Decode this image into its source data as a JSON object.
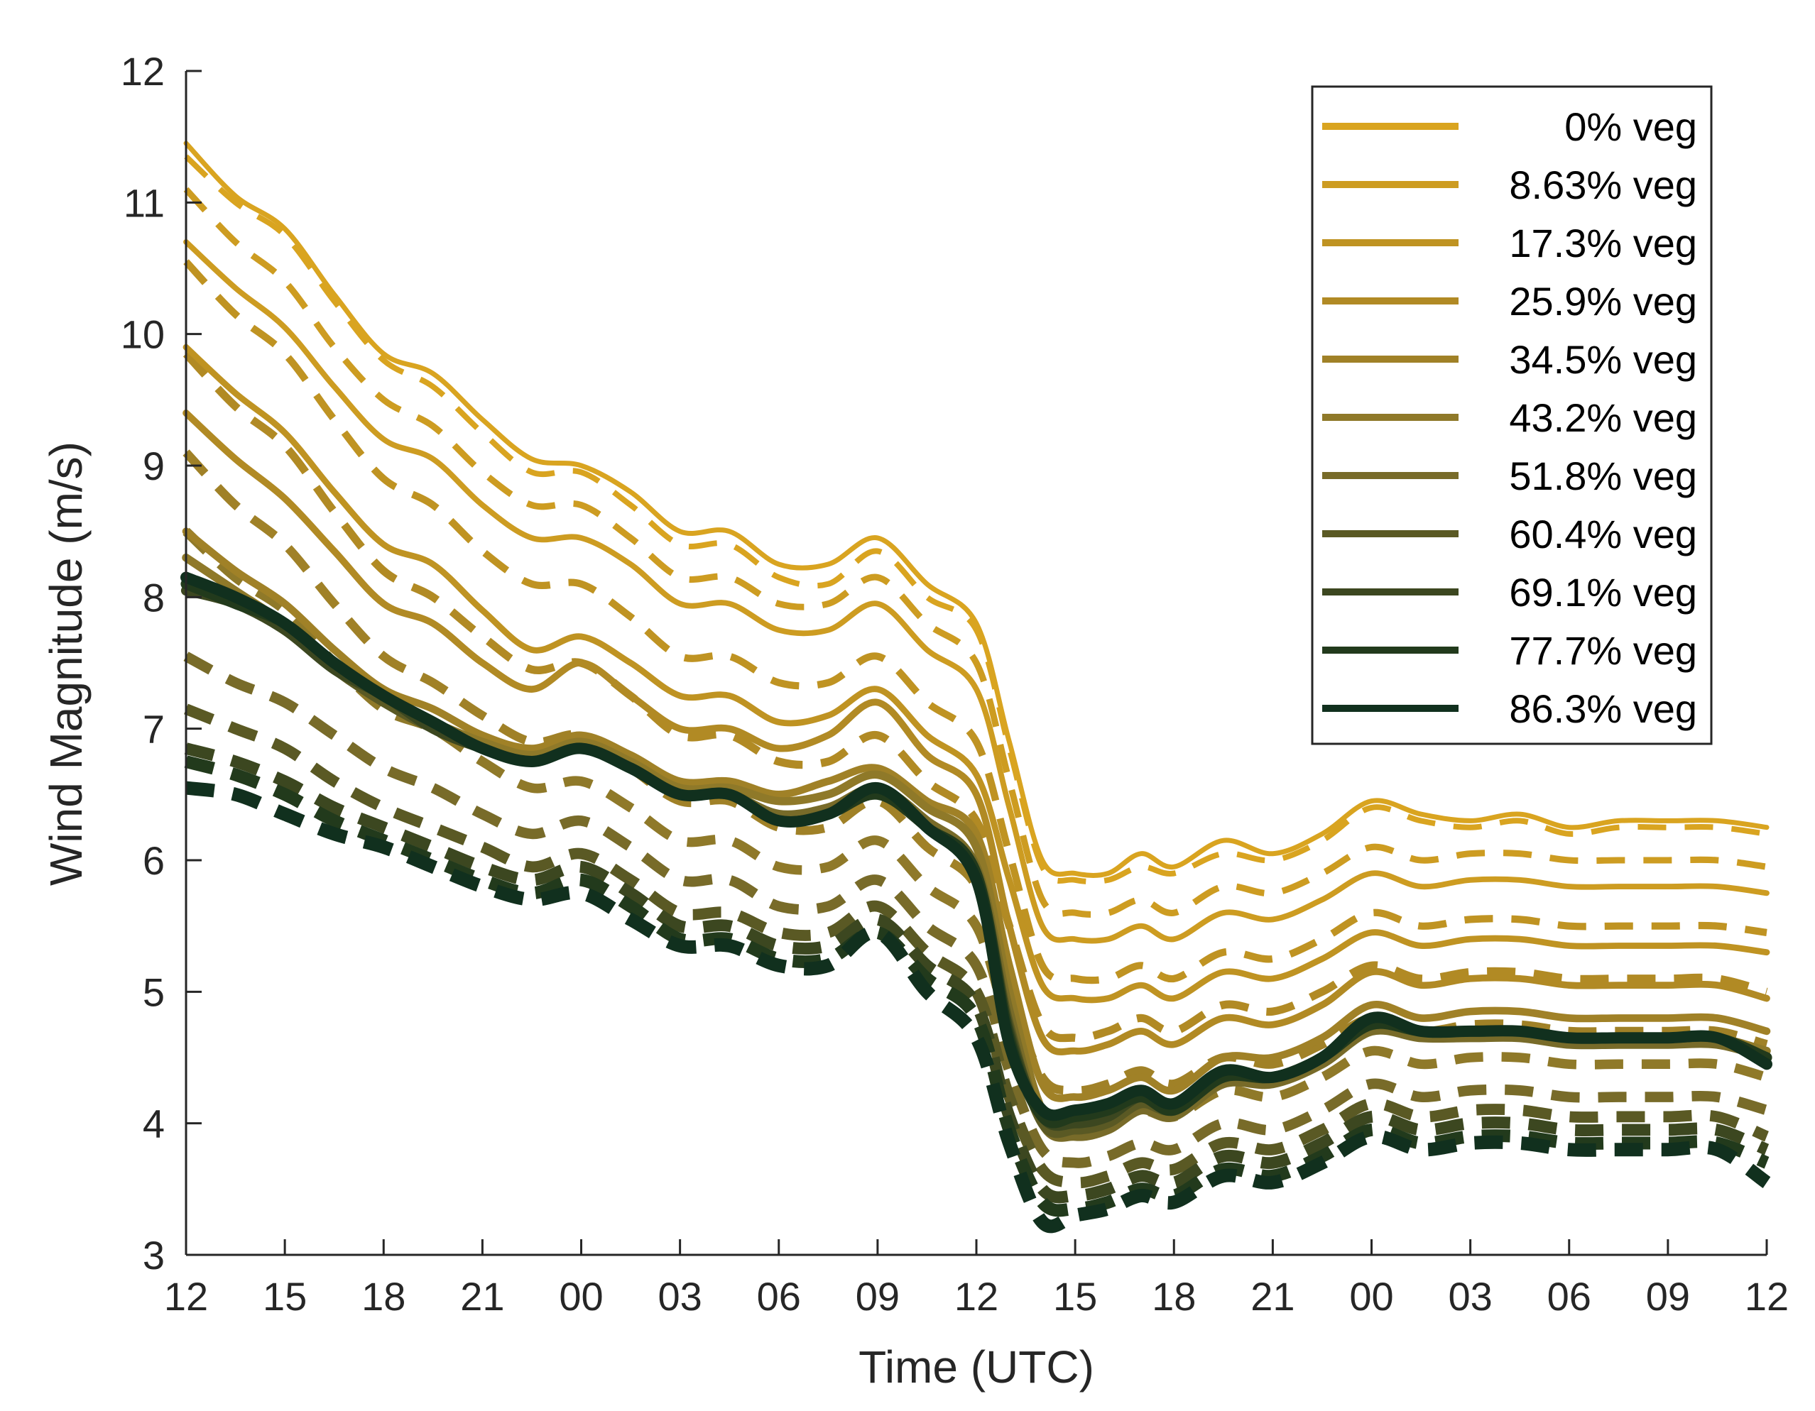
{
  "chart_data": {
    "type": "line",
    "title": "",
    "xlabel": "Time (UTC)",
    "ylabel": "Wind Magnitude (m/s)",
    "xlim": [
      0,
      48
    ],
    "ylim": [
      3,
      12
    ],
    "x_tick_values": [
      0,
      3,
      6,
      9,
      12,
      15,
      18,
      21,
      24,
      27,
      30,
      33,
      36,
      39,
      42,
      45,
      48
    ],
    "x_tick_labels": [
      "12",
      "15",
      "18",
      "21",
      "00",
      "03",
      "06",
      "09",
      "12",
      "15",
      "18",
      "21",
      "00",
      "03",
      "06",
      "09",
      "12"
    ],
    "y_ticks": [
      3,
      4,
      5,
      6,
      7,
      8,
      9,
      10,
      11,
      12
    ],
    "grid": false,
    "legend_position": "top-right",
    "line_style_note": "solid = one model set, dashed = paired set; both use the series colour",
    "x": [
      0,
      1.5,
      3,
      4.5,
      6,
      7.5,
      9,
      10.5,
      12,
      13.5,
      15,
      16.5,
      18,
      19.5,
      21,
      22.5,
      24,
      25,
      26,
      27,
      28,
      29,
      30,
      31.5,
      33,
      34.5,
      36,
      37.5,
      39,
      40.5,
      42,
      43.5,
      45,
      46.5,
      48
    ],
    "series": [
      {
        "name": "0% veg",
        "color": "#d9a420",
        "values": [
          11.45,
          11.05,
          10.8,
          10.3,
          9.85,
          9.7,
          9.35,
          9.05,
          9.0,
          8.8,
          8.5,
          8.5,
          8.25,
          8.25,
          8.45,
          8.1,
          7.8,
          6.9,
          6.0,
          5.9,
          5.9,
          6.05,
          5.95,
          6.15,
          6.05,
          6.2,
          6.45,
          6.35,
          6.3,
          6.35,
          6.25,
          6.3,
          6.3,
          6.3,
          6.25
        ]
      },
      {
        "name": "8.63% veg",
        "color": "#cd9c21",
        "values": [
          10.7,
          10.35,
          10.05,
          9.6,
          9.2,
          9.05,
          8.7,
          8.45,
          8.45,
          8.25,
          7.95,
          7.95,
          7.75,
          7.75,
          7.95,
          7.6,
          7.3,
          6.4,
          5.5,
          5.4,
          5.4,
          5.5,
          5.4,
          5.6,
          5.55,
          5.7,
          5.9,
          5.8,
          5.85,
          5.85,
          5.8,
          5.8,
          5.8,
          5.8,
          5.75
        ]
      },
      {
        "name": "17.3% veg",
        "color": "#bf9322",
        "values": [
          9.9,
          9.55,
          9.25,
          8.8,
          8.4,
          8.25,
          7.9,
          7.6,
          7.7,
          7.5,
          7.25,
          7.25,
          7.05,
          7.1,
          7.3,
          6.95,
          6.65,
          5.85,
          5.05,
          4.95,
          4.95,
          5.05,
          4.95,
          5.15,
          5.1,
          5.25,
          5.45,
          5.35,
          5.4,
          5.4,
          5.35,
          5.35,
          5.35,
          5.35,
          5.3
        ]
      },
      {
        "name": "25.9% veg",
        "color": "#b18a24",
        "values": [
          9.4,
          9.05,
          8.75,
          8.35,
          7.95,
          7.8,
          7.5,
          7.3,
          7.5,
          7.25,
          7.0,
          7.0,
          6.85,
          6.95,
          7.2,
          6.8,
          6.5,
          5.5,
          4.65,
          4.55,
          4.6,
          4.7,
          4.6,
          4.8,
          4.75,
          4.9,
          5.15,
          5.05,
          5.1,
          5.1,
          5.05,
          5.05,
          5.05,
          5.05,
          4.95
        ]
      },
      {
        "name": "34.5% veg",
        "color": "#a08127",
        "values": [
          8.5,
          8.2,
          7.95,
          7.6,
          7.3,
          7.15,
          6.95,
          6.85,
          6.95,
          6.8,
          6.6,
          6.6,
          6.5,
          6.6,
          6.7,
          6.45,
          6.2,
          5.2,
          4.3,
          4.2,
          4.25,
          4.35,
          4.25,
          4.5,
          4.5,
          4.65,
          4.9,
          4.8,
          4.85,
          4.85,
          4.8,
          4.8,
          4.8,
          4.8,
          4.7
        ]
      },
      {
        "name": "43.2% veg",
        "color": "#8f7929",
        "values": [
          8.3,
          8.05,
          7.8,
          7.5,
          7.2,
          7.05,
          6.9,
          6.8,
          6.9,
          6.75,
          6.55,
          6.55,
          6.45,
          6.5,
          6.65,
          6.4,
          6.1,
          5.0,
          4.1,
          4.0,
          4.05,
          4.15,
          4.1,
          4.35,
          4.35,
          4.5,
          4.75,
          4.7,
          4.7,
          4.7,
          4.65,
          4.65,
          4.65,
          4.65,
          4.55
        ]
      },
      {
        "name": "51.8% veg",
        "color": "#786b29",
        "values": [
          8.1,
          7.95,
          7.75,
          7.45,
          7.2,
          7.0,
          6.85,
          6.75,
          6.85,
          6.7,
          6.5,
          6.5,
          6.35,
          6.4,
          6.55,
          6.3,
          5.95,
          4.85,
          4.0,
          3.9,
          3.95,
          4.1,
          4.05,
          4.3,
          4.3,
          4.45,
          4.7,
          4.65,
          4.65,
          4.65,
          4.6,
          4.6,
          4.6,
          4.6,
          4.5
        ]
      },
      {
        "name": "60.4% veg",
        "color": "#5a5924",
        "values": [
          8.05,
          7.95,
          7.75,
          7.45,
          7.2,
          7.0,
          6.85,
          6.75,
          6.85,
          6.7,
          6.5,
          6.5,
          6.3,
          6.35,
          6.5,
          6.25,
          5.9,
          4.75,
          4.0,
          3.95,
          4.0,
          4.15,
          4.1,
          4.35,
          4.35,
          4.5,
          4.75,
          4.7,
          4.7,
          4.7,
          4.65,
          4.65,
          4.65,
          4.65,
          4.5
        ]
      },
      {
        "name": "69.1% veg",
        "color": "#3c4720",
        "values": [
          8.05,
          7.95,
          7.75,
          7.45,
          7.25,
          7.0,
          6.85,
          6.75,
          6.85,
          6.7,
          6.5,
          6.5,
          6.3,
          6.35,
          6.5,
          6.25,
          5.9,
          4.7,
          4.05,
          4.0,
          4.05,
          4.2,
          4.1,
          4.35,
          4.35,
          4.5,
          4.75,
          4.7,
          4.7,
          4.7,
          4.65,
          4.65,
          4.65,
          4.65,
          4.5
        ]
      },
      {
        "name": "77.7% veg",
        "color": "#223a1c",
        "values": [
          8.1,
          7.95,
          7.8,
          7.5,
          7.25,
          7.05,
          6.85,
          6.75,
          6.85,
          6.7,
          6.5,
          6.5,
          6.3,
          6.35,
          6.5,
          6.25,
          5.9,
          4.65,
          4.05,
          4.05,
          4.1,
          4.2,
          4.1,
          4.35,
          4.35,
          4.5,
          4.75,
          4.7,
          4.7,
          4.7,
          4.65,
          4.65,
          4.65,
          4.65,
          4.5
        ]
      },
      {
        "name": "86.3% veg",
        "color": "#11301e",
        "values": [
          8.15,
          8.0,
          7.8,
          7.5,
          7.25,
          7.05,
          6.85,
          6.75,
          6.85,
          6.7,
          6.5,
          6.5,
          6.3,
          6.35,
          6.55,
          6.25,
          5.85,
          4.6,
          4.1,
          4.1,
          4.15,
          4.25,
          4.15,
          4.4,
          4.35,
          4.5,
          4.8,
          4.7,
          4.7,
          4.7,
          4.65,
          4.65,
          4.65,
          4.65,
          4.45
        ]
      }
    ],
    "dashed_series": [
      {
        "name": "0% veg",
        "color": "#d9a420",
        "values": [
          11.35,
          11.0,
          10.75,
          10.25,
          9.8,
          9.6,
          9.25,
          8.95,
          8.95,
          8.7,
          8.4,
          8.4,
          8.15,
          8.1,
          8.35,
          8.0,
          7.75,
          6.85,
          5.95,
          5.85,
          5.85,
          5.95,
          5.9,
          6.05,
          6.0,
          6.15,
          6.4,
          6.3,
          6.25,
          6.3,
          6.2,
          6.25,
          6.25,
          6.25,
          6.2
        ]
      },
      {
        "name": "8.63% veg",
        "color": "#cd9c21",
        "values": [
          11.1,
          10.7,
          10.4,
          9.9,
          9.5,
          9.3,
          8.95,
          8.7,
          8.7,
          8.45,
          8.15,
          8.15,
          7.95,
          7.95,
          8.15,
          7.8,
          7.5,
          6.6,
          5.7,
          5.6,
          5.6,
          5.7,
          5.6,
          5.8,
          5.75,
          5.9,
          6.1,
          6.0,
          6.05,
          6.05,
          6.0,
          6.0,
          6.0,
          6.0,
          5.95
        ]
      },
      {
        "name": "17.3% veg",
        "color": "#bf9322",
        "values": [
          10.55,
          10.15,
          9.85,
          9.35,
          8.9,
          8.7,
          8.35,
          8.1,
          8.1,
          7.85,
          7.55,
          7.55,
          7.35,
          7.35,
          7.55,
          7.2,
          6.9,
          6.05,
          5.2,
          5.1,
          5.1,
          5.2,
          5.1,
          5.3,
          5.25,
          5.4,
          5.6,
          5.5,
          5.55,
          5.55,
          5.5,
          5.5,
          5.5,
          5.5,
          5.45
        ]
      },
      {
        "name": "25.9% veg",
        "color": "#b18a24",
        "values": [
          9.85,
          9.45,
          9.15,
          8.65,
          8.2,
          8.0,
          7.7,
          7.45,
          7.5,
          7.25,
          6.95,
          6.95,
          6.75,
          6.75,
          6.95,
          6.6,
          6.3,
          5.5,
          4.75,
          4.65,
          4.7,
          4.8,
          4.7,
          4.9,
          4.85,
          5.0,
          5.2,
          5.1,
          5.15,
          5.15,
          5.1,
          5.1,
          5.1,
          5.1,
          5.0
        ]
      },
      {
        "name": "34.5% veg",
        "color": "#a08127",
        "values": [
          9.1,
          8.7,
          8.4,
          7.95,
          7.55,
          7.35,
          7.1,
          6.9,
          6.95,
          6.7,
          6.45,
          6.45,
          6.25,
          6.25,
          6.45,
          6.1,
          5.8,
          5.0,
          4.35,
          4.25,
          4.3,
          4.4,
          4.3,
          4.5,
          4.45,
          4.6,
          4.8,
          4.7,
          4.75,
          4.75,
          4.7,
          4.7,
          4.7,
          4.7,
          4.6
        ]
      },
      {
        "name": "43.2% veg",
        "color": "#8f7929",
        "values": [
          8.5,
          8.15,
          7.9,
          7.5,
          7.15,
          7.0,
          6.75,
          6.55,
          6.6,
          6.4,
          6.15,
          6.15,
          5.95,
          5.95,
          6.15,
          5.8,
          5.5,
          4.7,
          4.05,
          3.95,
          4.0,
          4.1,
          4.05,
          4.25,
          4.2,
          4.35,
          4.55,
          4.45,
          4.5,
          4.5,
          4.45,
          4.45,
          4.45,
          4.45,
          4.35
        ]
      },
      {
        "name": "51.8% veg",
        "color": "#786b29",
        "values": [
          7.55,
          7.35,
          7.2,
          6.95,
          6.7,
          6.55,
          6.35,
          6.2,
          6.3,
          6.1,
          5.85,
          5.85,
          5.65,
          5.65,
          5.85,
          5.5,
          5.2,
          4.4,
          3.8,
          3.7,
          3.75,
          3.85,
          3.8,
          4.0,
          3.95,
          4.1,
          4.3,
          4.2,
          4.25,
          4.25,
          4.2,
          4.2,
          4.2,
          4.2,
          4.1
        ]
      },
      {
        "name": "60.4% veg",
        "color": "#5a5924",
        "values": [
          7.15,
          7.0,
          6.85,
          6.6,
          6.4,
          6.25,
          6.1,
          5.95,
          6.05,
          5.85,
          5.6,
          5.6,
          5.45,
          5.45,
          5.65,
          5.3,
          5.0,
          4.2,
          3.65,
          3.55,
          3.6,
          3.7,
          3.65,
          3.85,
          3.8,
          3.95,
          4.15,
          4.05,
          4.1,
          4.1,
          4.05,
          4.05,
          4.05,
          4.05,
          3.9
        ]
      },
      {
        "name": "69.1% veg",
        "color": "#3c4720",
        "values": [
          6.85,
          6.75,
          6.6,
          6.4,
          6.25,
          6.1,
          5.95,
          5.85,
          5.95,
          5.75,
          5.5,
          5.5,
          5.35,
          5.35,
          5.55,
          5.2,
          4.9,
          4.05,
          3.5,
          3.45,
          3.5,
          3.6,
          3.55,
          3.75,
          3.7,
          3.85,
          4.05,
          3.95,
          4.0,
          4.0,
          3.95,
          3.95,
          3.95,
          3.95,
          3.8
        ]
      },
      {
        "name": "77.7% veg",
        "color": "#223a1c",
        "values": [
          6.75,
          6.65,
          6.5,
          6.3,
          6.15,
          6.0,
          5.85,
          5.75,
          5.85,
          5.65,
          5.4,
          5.4,
          5.25,
          5.25,
          5.45,
          5.1,
          4.8,
          3.95,
          3.4,
          3.35,
          3.4,
          3.5,
          3.45,
          3.65,
          3.6,
          3.75,
          3.95,
          3.85,
          3.9,
          3.9,
          3.85,
          3.85,
          3.85,
          3.85,
          3.7
        ]
      },
      {
        "name": "86.3% veg",
        "color": "#11301e",
        "values": [
          6.55,
          6.5,
          6.35,
          6.2,
          6.1,
          5.95,
          5.8,
          5.7,
          5.75,
          5.55,
          5.35,
          5.35,
          5.2,
          5.2,
          5.45,
          5.0,
          4.65,
          3.85,
          3.25,
          3.3,
          3.35,
          3.45,
          3.4,
          3.6,
          3.55,
          3.7,
          3.9,
          3.8,
          3.85,
          3.85,
          3.8,
          3.8,
          3.8,
          3.8,
          3.55
        ]
      }
    ]
  }
}
